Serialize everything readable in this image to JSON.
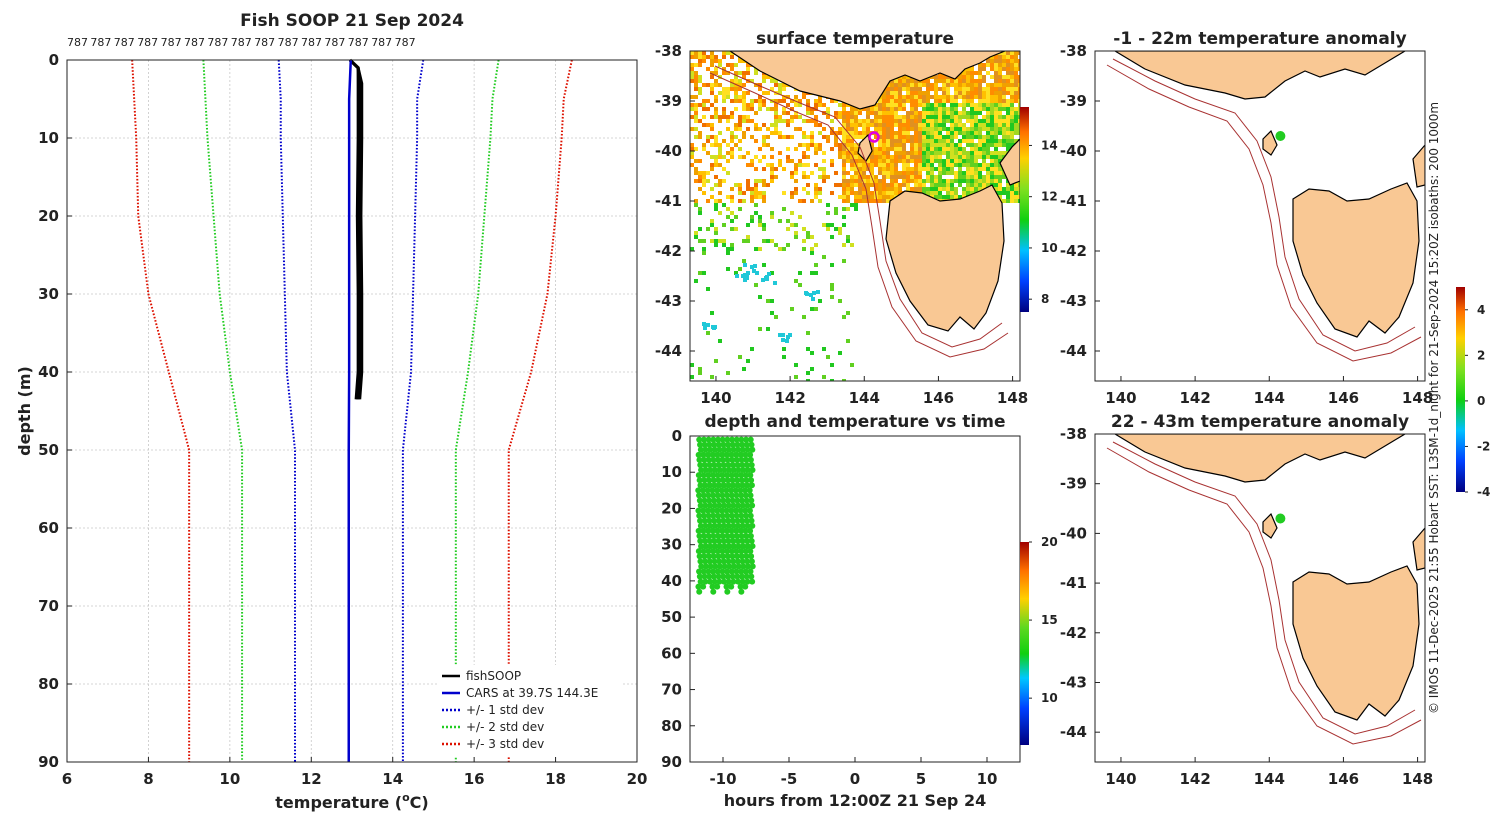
{
  "profile_panel": {
    "title": "Fish SOOP 21 Sep 2024",
    "counts_label": "787",
    "counts_n": 15,
    "xlabel": "temperature (°C)",
    "xlabel_main": "temperature (",
    "xlabel_sup": "o",
    "xlabel_tail": "C)",
    "ylabel": "depth (m)",
    "legend": [
      "fishSOOP",
      "CARS at 39.7S 144.3E",
      "+/- 1 std dev",
      "+/- 2 std dev",
      "+/- 3 std dev"
    ]
  },
  "sst_panel": {
    "title": "surface temperature",
    "colorbar_ticks": [
      "8",
      "10",
      "12",
      "14"
    ]
  },
  "time_panel": {
    "title": "depth and temperature vs time",
    "xlabel": "hours from 12:00Z 21 Sep 24",
    "colorbar_ticks": [
      "10",
      "15",
      "20"
    ]
  },
  "anom_panel_top": {
    "title": "-1 - 22m temperature anomaly"
  },
  "anom_panel_bottom": {
    "title": "22 - 43m temperature anomaly"
  },
  "anom_colorbar_ticks": [
    "-4",
    "-2",
    "0",
    "2",
    "4"
  ],
  "side_caption": "© IMOS 11-Dec-2025 21:55 Hobart SST: L3SM-1d_night for 21-Sep-2024 15:20Z isobaths: 200  1000m",
  "map_axes": {
    "lon_ticks": [
      "140",
      "142",
      "144",
      "146",
      "148"
    ],
    "lat_ticks": [
      "-38",
      "-39",
      "-40",
      "-41",
      "-42",
      "-43",
      "-44"
    ]
  },
  "colors": {
    "fishsoop": "#000000",
    "cars": "#0000cc",
    "std1": "#0000cc",
    "std2": "#22cc22",
    "std3": "#dd1100",
    "land": "#f9c894",
    "isobath": "#a83232",
    "marker": "#22cc22"
  },
  "chart_data": [
    {
      "type": "line",
      "title": "Fish SOOP 21 Sep 2024",
      "xlabel": "temperature (°C)",
      "ylabel": "depth (m)",
      "xlim": [
        6,
        20
      ],
      "ylim": [
        90,
        0
      ],
      "xticks": [
        6,
        8,
        10,
        12,
        14,
        16,
        18,
        20
      ],
      "yticks": [
        0,
        10,
        20,
        30,
        40,
        50,
        60,
        70,
        80,
        90
      ],
      "grid": true,
      "legend_position": "bottom-right",
      "series": [
        {
          "name": "fishSOOP",
          "style": "solid",
          "x": [
            12.95,
            13.15,
            13.2,
            13.2,
            13.18,
            13.2,
            13.2,
            13.15
          ],
          "y": [
            0,
            1,
            3,
            10,
            20,
            30,
            40,
            43.5
          ]
        },
        {
          "name": "CARS at 39.7S 144.3E",
          "style": "solid",
          "x": [
            12.97,
            12.93,
            12.93,
            12.93,
            12.93,
            12.93,
            12.92,
            12.92,
            12.92,
            12.92
          ],
          "y": [
            0,
            5,
            10,
            20,
            30,
            40,
            50,
            60,
            70,
            90
          ]
        },
        {
          "name": "+1 std dev",
          "style": "dotted",
          "x": [
            14.75,
            14.6,
            14.6,
            14.55,
            14.5,
            14.45,
            14.25,
            14.25,
            14.25,
            14.25
          ],
          "y": [
            0,
            5,
            10,
            20,
            30,
            40,
            50,
            60,
            70,
            90
          ]
        },
        {
          "name": "-1 std dev",
          "style": "dotted",
          "x": [
            11.2,
            11.25,
            11.25,
            11.3,
            11.35,
            11.4,
            11.6,
            11.6,
            11.6,
            11.6
          ],
          "y": [
            0,
            5,
            10,
            20,
            30,
            40,
            50,
            60,
            70,
            90
          ]
        },
        {
          "name": "+2 std dev",
          "style": "dotted",
          "x": [
            16.6,
            16.45,
            16.4,
            16.25,
            16.1,
            15.85,
            15.55,
            15.55,
            15.55,
            15.55
          ],
          "y": [
            0,
            5,
            10,
            20,
            30,
            40,
            50,
            60,
            70,
            90
          ]
        },
        {
          "name": "-2 std dev",
          "style": "dotted",
          "x": [
            9.35,
            9.4,
            9.45,
            9.6,
            9.75,
            10.0,
            10.3,
            10.3,
            10.3,
            10.3
          ],
          "y": [
            0,
            5,
            10,
            20,
            30,
            40,
            50,
            60,
            70,
            90
          ]
        },
        {
          "name": "+3 std dev",
          "style": "dotted",
          "x": [
            18.4,
            18.2,
            18.15,
            18.0,
            17.8,
            17.4,
            16.85,
            16.85,
            16.85,
            16.85
          ],
          "y": [
            0,
            5,
            10,
            20,
            30,
            40,
            50,
            60,
            70,
            90
          ]
        },
        {
          "name": "-3 std dev",
          "style": "dotted",
          "x": [
            7.6,
            7.65,
            7.7,
            7.75,
            8.0,
            8.5,
            9.0,
            9.0,
            9.0,
            9.0
          ],
          "y": [
            0,
            5,
            10,
            20,
            30,
            40,
            50,
            60,
            70,
            90
          ]
        }
      ]
    },
    {
      "type": "scatter",
      "title": "depth and temperature vs time",
      "xlabel": "hours from 12:00Z 21 Sep 24",
      "ylabel": "",
      "xlim": [
        -12.5,
        12.5
      ],
      "ylim": [
        90,
        0
      ],
      "xticks": [
        -10,
        -5,
        0,
        5,
        10
      ],
      "yticks": [
        0,
        10,
        20,
        30,
        40,
        50,
        60,
        70,
        80,
        90
      ],
      "colorbar": {
        "range": [
          7,
          20
        ],
        "ticks": [
          10,
          15,
          20
        ]
      },
      "x_range_of_points": [
        -11.8,
        -7.9
      ],
      "depth_range_of_points": [
        1,
        43.5
      ],
      "point_temperature": 13.2
    },
    {
      "type": "heatmap",
      "title": "surface temperature",
      "xlim": [
        139.3,
        148.2
      ],
      "ylim": [
        -44.6,
        -38
      ],
      "colorbar": {
        "range": [
          7.5,
          15.5
        ],
        "ticks": [
          8,
          10,
          12,
          14
        ]
      },
      "marker": {
        "lon": 144.3,
        "lat": -39.7
      }
    },
    {
      "type": "scatter",
      "title": "-1 - 22m temperature anomaly",
      "xlim": [
        139.3,
        148.2
      ],
      "ylim": [
        -44.6,
        -38
      ],
      "colorbar": {
        "range": [
          -4,
          5
        ],
        "ticks": [
          -4,
          -2,
          0,
          2,
          4
        ]
      },
      "points": [
        {
          "lon": 144.3,
          "lat": -39.7,
          "anomaly": 0.2
        }
      ]
    },
    {
      "type": "scatter",
      "title": "22 - 43m temperature anomaly",
      "xlim": [
        139.3,
        148.2
      ],
      "ylim": [
        -44.6,
        -38
      ],
      "colorbar": {
        "range": [
          -4,
          5
        ],
        "ticks": [
          -4,
          -2,
          0,
          2,
          4
        ]
      },
      "points": [
        {
          "lon": 144.3,
          "lat": -39.7,
          "anomaly": 0.2
        }
      ]
    }
  ]
}
